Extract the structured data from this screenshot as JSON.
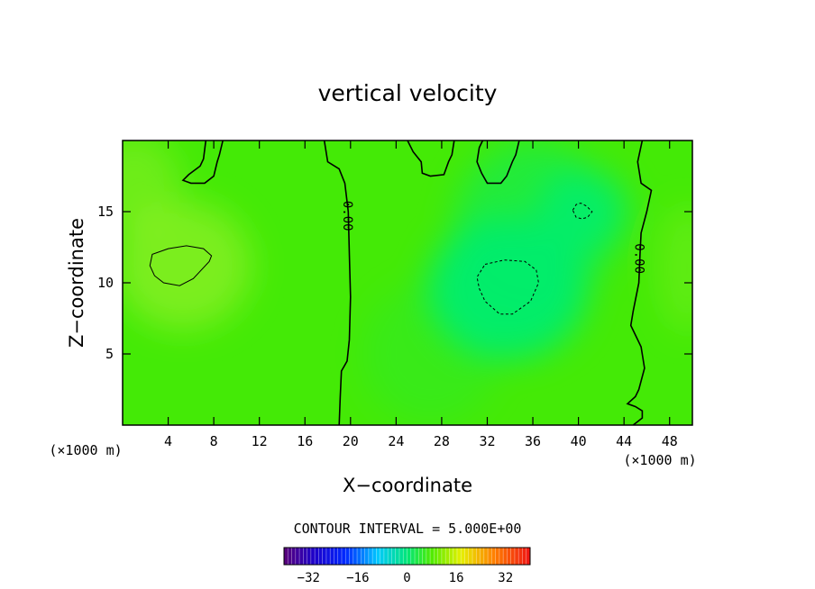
{
  "chart_data": {
    "type": "heatmap",
    "title": "vertical velocity",
    "xlabel": "X−coordinate",
    "ylabel": "Z−coordinate",
    "x_unit_left": "(×1000 m)",
    "x_unit_right": "(×1000 m)",
    "xlim": [
      0,
      50
    ],
    "ylim": [
      0,
      20
    ],
    "xticks": [
      4,
      8,
      12,
      16,
      20,
      24,
      28,
      32,
      36,
      40,
      44,
      48
    ],
    "yticks": [
      5,
      10,
      15
    ],
    "contour_interval_text": "CONTOUR INTERVAL = 5.000E+00",
    "contour_labels": [
      {
        "text": "0.00",
        "x": 19.7,
        "y": 14.7
      },
      {
        "text": "0.00",
        "x": 45.3,
        "y": 11.7
      }
    ],
    "field_blobs": [
      {
        "x": 5.3,
        "y": 11.2,
        "rx": 6.0,
        "ry": 4.5,
        "value": 4
      },
      {
        "x": 1.0,
        "y": 17.0,
        "rx": 4.0,
        "ry": 3.5,
        "value": 3
      },
      {
        "x": 33.8,
        "y": 9.6,
        "rx": 7.0,
        "ry": 5.0,
        "value": -6
      },
      {
        "x": 40.4,
        "y": 15.0,
        "rx": 4.0,
        "ry": 3.0,
        "value": -5
      },
      {
        "x": 36.0,
        "y": 14.0,
        "rx": 7.0,
        "ry": 6.0,
        "value": -3
      },
      {
        "x": 27.0,
        "y": 5.0,
        "rx": 6.0,
        "ry": 5.0,
        "value": -1
      },
      {
        "x": 49.5,
        "y": 11.0,
        "rx": 2.5,
        "ry": 4.5,
        "value": 2
      }
    ],
    "contours": [
      {
        "level": 0,
        "style": "solid",
        "points": [
          [
            17.7,
            20
          ],
          [
            18.0,
            18.5
          ],
          [
            19.0,
            18.0
          ],
          [
            19.5,
            17.0
          ],
          [
            19.8,
            15.0
          ],
          [
            19.9,
            12.0
          ],
          [
            20.0,
            9.0
          ],
          [
            19.9,
            6.0
          ],
          [
            19.7,
            4.5
          ],
          [
            19.2,
            3.8
          ],
          [
            19.1,
            2.0
          ],
          [
            19.0,
            0
          ]
        ]
      },
      {
        "level": 0,
        "style": "solid",
        "points": [
          [
            45.6,
            20
          ],
          [
            45.2,
            18.5
          ],
          [
            45.5,
            17.0
          ],
          [
            46.4,
            16.5
          ],
          [
            46.0,
            15.0
          ],
          [
            45.5,
            13.5
          ],
          [
            45.4,
            12.0
          ],
          [
            45.3,
            10.0
          ],
          [
            44.8,
            8.0
          ],
          [
            44.6,
            7.0
          ],
          [
            45.5,
            5.5
          ],
          [
            45.8,
            4.0
          ],
          [
            45.3,
            2.5
          ],
          [
            45.0,
            2.0
          ],
          [
            44.3,
            1.5
          ],
          [
            45.0,
            1.3
          ],
          [
            45.6,
            1.0
          ],
          [
            45.6,
            0.5
          ],
          [
            44.8,
            0
          ]
        ]
      },
      {
        "level": 0,
        "style": "solid",
        "points": [
          [
            7.3,
            20
          ],
          [
            7.1,
            18.7
          ],
          [
            6.8,
            18.2
          ],
          [
            5.8,
            17.6
          ],
          [
            5.3,
            17.2
          ],
          [
            6.0,
            17.0
          ],
          [
            7.2,
            17.0
          ],
          [
            8.0,
            17.5
          ],
          [
            8.3,
            18.5
          ],
          [
            8.5,
            19.0
          ],
          [
            8.8,
            20
          ]
        ]
      },
      {
        "level": 0,
        "style": "solid",
        "points": [
          [
            25.0,
            20
          ],
          [
            25.5,
            19.2
          ],
          [
            26.2,
            18.5
          ],
          [
            26.3,
            17.7
          ],
          [
            27.0,
            17.5
          ],
          [
            28.2,
            17.6
          ],
          [
            28.6,
            18.5
          ],
          [
            28.9,
            19.0
          ],
          [
            29.1,
            20
          ]
        ]
      },
      {
        "level": 0,
        "style": "solid",
        "points": [
          [
            31.6,
            20
          ],
          [
            31.3,
            19.5
          ],
          [
            31.1,
            18.5
          ],
          [
            31.5,
            17.7
          ],
          [
            32.0,
            17.0
          ],
          [
            33.2,
            17.0
          ],
          [
            33.7,
            17.5
          ],
          [
            34.2,
            18.5
          ],
          [
            34.5,
            19.0
          ],
          [
            34.8,
            20
          ]
        ]
      },
      {
        "level": 5,
        "style": "solid",
        "points": [
          [
            4.0,
            12.4
          ],
          [
            2.6,
            12.0
          ],
          [
            2.4,
            11.2
          ],
          [
            2.8,
            10.5
          ],
          [
            3.6,
            10.0
          ],
          [
            5.0,
            9.8
          ],
          [
            6.2,
            10.3
          ],
          [
            7.6,
            11.5
          ],
          [
            7.8,
            11.9
          ],
          [
            7.1,
            12.4
          ],
          [
            5.6,
            12.6
          ]
        ]
      },
      {
        "level": -5,
        "style": "dashed",
        "points": [
          [
            31.8,
            11.3
          ],
          [
            33.5,
            11.6
          ],
          [
            35.3,
            11.5
          ],
          [
            36.3,
            10.9
          ],
          [
            36.5,
            10.0
          ],
          [
            35.8,
            8.7
          ],
          [
            34.2,
            7.8
          ],
          [
            33.1,
            7.8
          ],
          [
            31.8,
            8.7
          ],
          [
            31.3,
            9.6
          ],
          [
            31.1,
            10.4
          ]
        ]
      },
      {
        "level": -5,
        "style": "dashed",
        "points": [
          [
            39.5,
            15.1
          ],
          [
            39.8,
            15.5
          ],
          [
            40.2,
            15.6
          ],
          [
            40.7,
            15.4
          ],
          [
            41.2,
            15.0
          ],
          [
            40.8,
            14.6
          ],
          [
            40.3,
            14.5
          ],
          [
            39.8,
            14.6
          ]
        ]
      }
    ],
    "colorbar": {
      "ticks": [
        "−32",
        "−16",
        "0",
        "16",
        "32"
      ],
      "tick_values": [
        -32,
        -16,
        0,
        16,
        32
      ],
      "range": [
        -40,
        40
      ]
    },
    "colors": {
      "field_base": "#44ea06",
      "field_positive": "#96f02a",
      "field_negative": "#06ed6e",
      "line": "#000000"
    }
  }
}
